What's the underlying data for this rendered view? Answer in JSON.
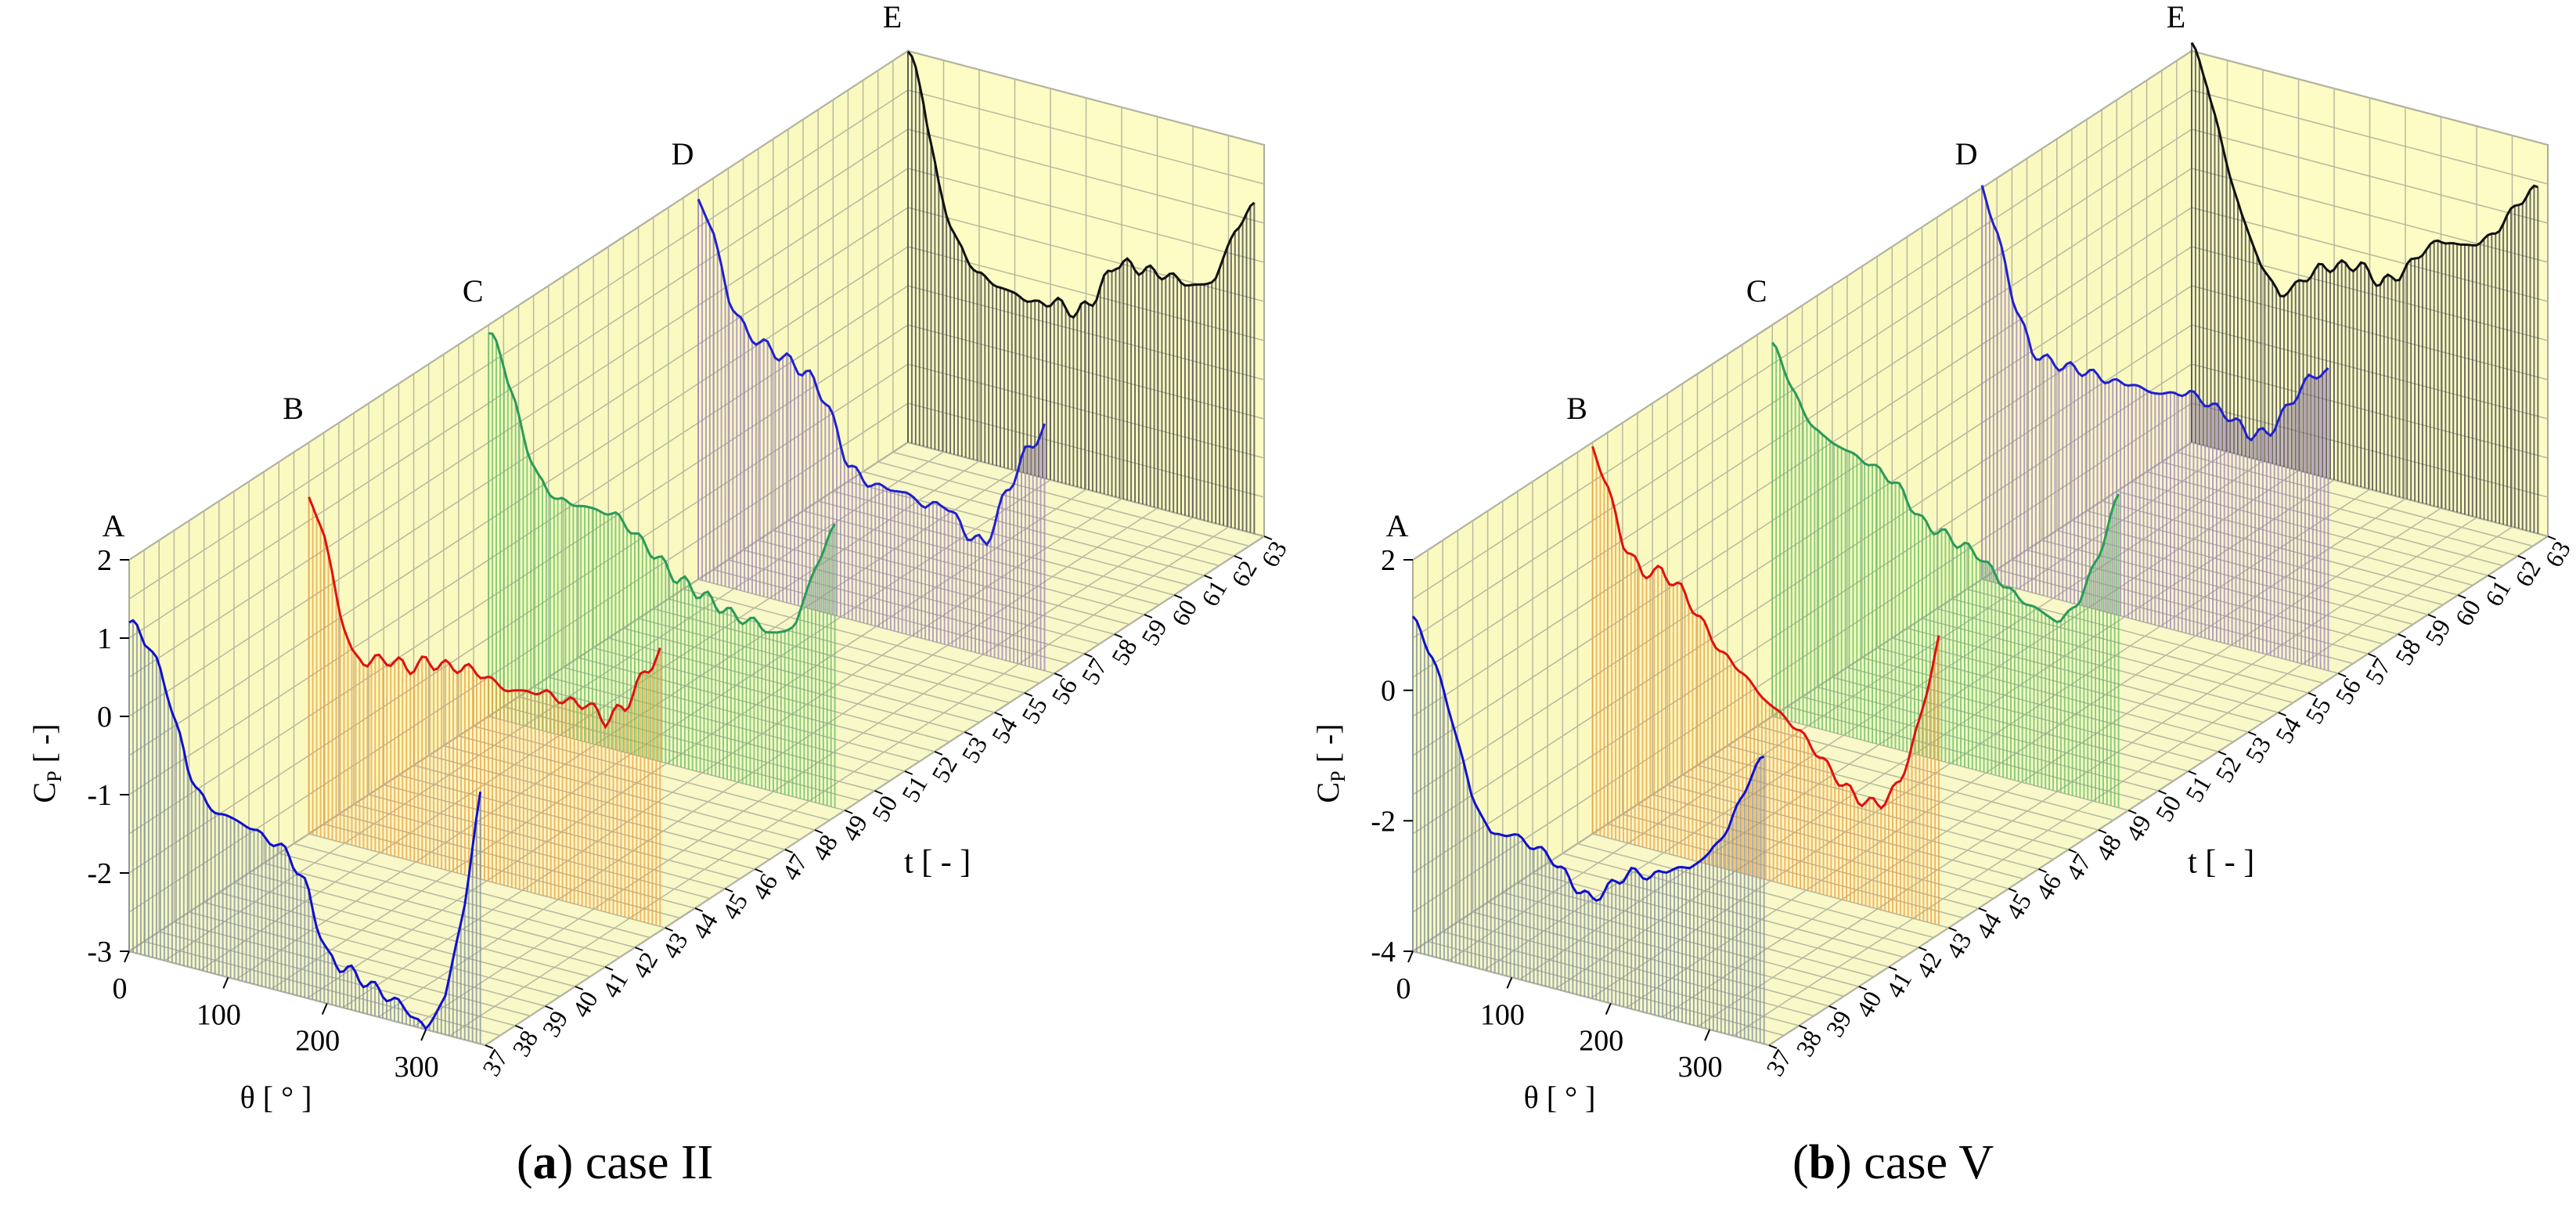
{
  "chart_data": [
    {
      "type": "line",
      "panel": "a",
      "caption_letter": "a",
      "caption_text": "case II",
      "title": "",
      "ylabel_main": "C",
      "ylabel_sub": "P",
      "ylabel_unit": "[ -]",
      "xlabel": "θ [ ° ]",
      "zlabel": "t [ - ]",
      "xlim": [
        0,
        360
      ],
      "ylim": [
        -3,
        2
      ],
      "zlim": [
        37,
        63
      ],
      "xticks": [
        "0",
        "100",
        "200",
        "300"
      ],
      "xtick_values": [
        0,
        100,
        200,
        300
      ],
      "yticks": [
        "-3",
        "-2",
        "-1",
        "0",
        "1",
        "2"
      ],
      "ytick_values": [
        -3,
        -2,
        -1,
        0,
        1,
        2
      ],
      "zticks": [
        "37",
        "38",
        "39",
        "40",
        "41",
        "42",
        "43",
        "44",
        "45",
        "46",
        "47",
        "48",
        "49",
        "50",
        "51",
        "52",
        "53",
        "54",
        "55",
        "56",
        "57",
        "58",
        "59",
        "60",
        "61",
        "62",
        "63"
      ],
      "series": [
        {
          "name": "A",
          "t": 37,
          "color": "#1010d0",
          "fill": "#8090a0",
          "theta": [
            0,
            20,
            40,
            60,
            80,
            100,
            120,
            140,
            160,
            180,
            200,
            220,
            240,
            260,
            280,
            300,
            320,
            340,
            355
          ],
          "cp": [
            1.2,
            1.0,
            0.4,
            -0.5,
            -0.9,
            -0.95,
            -1.0,
            -1.1,
            -1.2,
            -1.6,
            -2.4,
            -2.5,
            -2.6,
            -2.7,
            -2.8,
            -3.0,
            -2.5,
            -1.2,
            0.2
          ]
        },
        {
          "name": "B",
          "t": 43,
          "color": "#e01010",
          "fill": "#f0a040",
          "theta": [
            0,
            15,
            30,
            45,
            60,
            80,
            100,
            120,
            140,
            160,
            180,
            200,
            220,
            240,
            260,
            280,
            300,
            320,
            340,
            355
          ],
          "cp": [
            1.3,
            0.9,
            0.0,
            -0.6,
            -0.6,
            -0.5,
            -0.55,
            -0.4,
            -0.4,
            -0.35,
            -0.4,
            -0.5,
            -0.45,
            -0.4,
            -0.45,
            -0.4,
            -0.55,
            -0.3,
            0.2,
            0.5
          ]
        },
        {
          "name": "C",
          "t": 49,
          "color": "#2a9a5a",
          "fill": "#60c060",
          "theta": [
            0,
            15,
            30,
            50,
            70,
            90,
            110,
            130,
            150,
            170,
            190,
            210,
            230,
            250,
            270,
            290,
            310,
            330,
            350
          ],
          "cp": [
            1.9,
            1.6,
            0.9,
            0.2,
            0.0,
            0.0,
            0.0,
            0.0,
            -0.2,
            -0.4,
            -0.6,
            -0.7,
            -0.8,
            -0.9,
            -0.9,
            -1.0,
            -0.8,
            0.0,
            0.6
          ]
        },
        {
          "name": "D",
          "t": 56,
          "color": "#2020d0",
          "fill": "#a080c0",
          "theta": [
            0,
            15,
            30,
            50,
            70,
            90,
            110,
            130,
            150,
            170,
            190,
            210,
            230,
            250,
            270,
            290,
            310,
            330,
            350
          ],
          "cp": [
            1.85,
            1.5,
            0.7,
            0.3,
            0.2,
            0.1,
            0.0,
            -0.3,
            -1.0,
            -1.2,
            -1.2,
            -1.2,
            -1.3,
            -1.2,
            -1.5,
            -1.6,
            -0.9,
            -0.3,
            0.1
          ]
        },
        {
          "name": "E",
          "t": 63,
          "color": "#101010",
          "fill": "#404040",
          "theta": [
            0,
            15,
            30,
            50,
            70,
            90,
            110,
            130,
            150,
            170,
            190,
            210,
            230,
            250,
            270,
            290,
            310,
            330,
            350
          ],
          "cp": [
            2.0,
            1.5,
            0.4,
            -0.3,
            -0.6,
            -0.7,
            -0.75,
            -0.8,
            -0.7,
            -0.8,
            -0.5,
            0.0,
            0.0,
            0.0,
            0.0,
            -0.05,
            0.1,
            0.8,
            1.2
          ]
        }
      ]
    },
    {
      "type": "line",
      "panel": "b",
      "caption_letter": "b",
      "caption_text": "case V",
      "title": "",
      "ylabel_main": "C",
      "ylabel_sub": "P",
      "ylabel_unit": "[ -]",
      "xlabel": "θ [ ° ]",
      "zlabel": "t [ - ]",
      "xlim": [
        0,
        360
      ],
      "ylim": [
        -4,
        2
      ],
      "zlim": [
        37,
        63
      ],
      "xticks": [
        "0",
        "100",
        "200",
        "300"
      ],
      "xtick_values": [
        0,
        100,
        200,
        300
      ],
      "yticks": [
        "-4",
        "-2",
        "0",
        "2"
      ],
      "ytick_values": [
        -4,
        -2,
        0,
        2
      ],
      "zticks": [
        "37",
        "38",
        "39",
        "40",
        "41",
        "42",
        "43",
        "44",
        "45",
        "46",
        "47",
        "48",
        "49",
        "50",
        "51",
        "52",
        "53",
        "54",
        "55",
        "56",
        "57",
        "58",
        "59",
        "60",
        "61",
        "62",
        "63"
      ],
      "series": [
        {
          "name": "A",
          "t": 37,
          "color": "#1010d0",
          "fill": "#8090a0",
          "theta": [
            0,
            20,
            40,
            60,
            80,
            100,
            120,
            140,
            160,
            180,
            200,
            220,
            240,
            260,
            280,
            300,
            320,
            340,
            355
          ],
          "cp": [
            1.1,
            0.6,
            -0.3,
            -1.4,
            -1.9,
            -1.8,
            -1.9,
            -2.0,
            -2.3,
            -2.5,
            -2.2,
            -1.9,
            -1.9,
            -1.7,
            -1.6,
            -1.3,
            -0.8,
            0.0,
            0.4
          ]
        },
        {
          "name": "B",
          "t": 43,
          "color": "#e01010",
          "fill": "#f0a040",
          "theta": [
            0,
            15,
            30,
            50,
            70,
            90,
            110,
            130,
            150,
            170,
            190,
            210,
            230,
            250,
            270,
            290,
            310,
            330,
            350
          ],
          "cp": [
            1.9,
            1.4,
            0.6,
            0.2,
            0.3,
            0.1,
            -0.3,
            -0.7,
            -0.9,
            -1.2,
            -1.4,
            -1.6,
            -1.9,
            -2.2,
            -2.4,
            -2.4,
            -2.0,
            -1.0,
            0.4
          ]
        },
        {
          "name": "C",
          "t": 49,
          "color": "#2a9a5a",
          "fill": "#60c060",
          "theta": [
            0,
            15,
            30,
            50,
            70,
            90,
            110,
            130,
            150,
            170,
            190,
            210,
            230,
            250,
            270,
            290,
            310,
            330,
            350
          ],
          "cp": [
            1.7,
            1.3,
            0.8,
            0.5,
            0.4,
            0.3,
            0.2,
            0.0,
            -0.4,
            -0.5,
            -0.6,
            -0.7,
            -1.0,
            -1.2,
            -1.3,
            -1.4,
            -1.0,
            -0.2,
            0.8
          ]
        },
        {
          "name": "D",
          "t": 56,
          "color": "#2020d0",
          "fill": "#a080c0",
          "theta": [
            0,
            15,
            30,
            50,
            70,
            90,
            110,
            130,
            150,
            170,
            190,
            210,
            230,
            250,
            270,
            290,
            310,
            330,
            350
          ],
          "cp": [
            2.0,
            1.4,
            0.5,
            -0.3,
            -0.4,
            -0.4,
            -0.4,
            -0.45,
            -0.4,
            -0.45,
            -0.4,
            -0.3,
            -0.4,
            -0.5,
            -0.7,
            -0.6,
            -0.1,
            0.4,
            0.6
          ]
        },
        {
          "name": "E",
          "t": 63,
          "color": "#101010",
          "fill": "#404040",
          "theta": [
            0,
            15,
            30,
            50,
            70,
            90,
            110,
            130,
            150,
            170,
            190,
            210,
            230,
            250,
            270,
            290,
            310,
            330,
            350
          ],
          "cp": [
            2.1,
            1.6,
            0.7,
            -0.3,
            -1.0,
            -1.4,
            -1.1,
            -0.8,
            -0.7,
            -0.6,
            -0.8,
            -0.6,
            -0.2,
            0.1,
            0.1,
            0.2,
            0.5,
            1.0,
            1.3
          ]
        }
      ]
    }
  ]
}
